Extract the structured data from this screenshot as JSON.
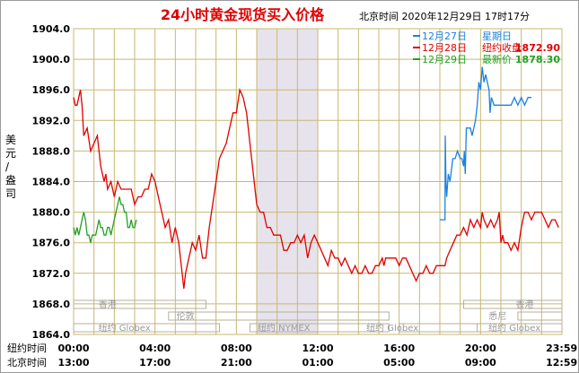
{
  "chart_data": {
    "type": "line",
    "title": "24小时黄金现货买入价格",
    "timestamp": "北京时间   2020年12月29日 17时17分",
    "ylabel": "美元/盎司",
    "ylim": [
      1864.0,
      1904.0
    ],
    "yticks": [
      "1904.0",
      "1900.0",
      "1896.0",
      "1892.0",
      "1888.0",
      "1884.0",
      "1880.0",
      "1876.0",
      "1872.0",
      "1868.0",
      "1864.0"
    ],
    "x_label_ny": "纽约时间",
    "x_label_bj": "北京时间",
    "x_ticks_ny": [
      "00:00",
      "04:00",
      "08:00",
      "12:00",
      "16:00",
      "20:00",
      "23:59"
    ],
    "x_ticks_bj": [
      "13:00",
      "17:00",
      "21:00",
      "01:00",
      "05:00",
      "09:00",
      "12:59"
    ],
    "x_minutes": [
      0,
      240,
      480,
      720,
      960,
      1200,
      1439
    ],
    "legend": [
      {
        "date": "12月27日",
        "label": "星期日",
        "value": "",
        "color": "#1a82e0"
      },
      {
        "date": "12月28日",
        "label": "纽约收盘",
        "value": "1872.90",
        "color": "#e00000"
      },
      {
        "date": "12月29日",
        "label": "最新价",
        "value": "1878.30",
        "color": "#22a022"
      }
    ],
    "sessions": [
      "香港",
      "伦敦",
      "纽约 Globex",
      "纽约 NYMEX",
      "纽约 Globex",
      "香港",
      "悉尼",
      "纽约 Globex"
    ],
    "series": [
      {
        "name": "12月27日",
        "color": "#1a82e0",
        "points": [
          [
            1080,
            1879
          ],
          [
            1095,
            1879
          ],
          [
            1096,
            1890
          ],
          [
            1098,
            1884
          ],
          [
            1100,
            1882
          ],
          [
            1105,
            1885
          ],
          [
            1110,
            1884
          ],
          [
            1118,
            1887
          ],
          [
            1125,
            1887
          ],
          [
            1132,
            1888
          ],
          [
            1140,
            1887
          ],
          [
            1145,
            1887
          ],
          [
            1150,
            1886
          ],
          [
            1152,
            1888
          ],
          [
            1155,
            1885
          ],
          [
            1158,
            1891
          ],
          [
            1162,
            1891
          ],
          [
            1170,
            1891
          ],
          [
            1175,
            1890
          ],
          [
            1180,
            1891
          ],
          [
            1185,
            1892
          ],
          [
            1190,
            1894
          ],
          [
            1195,
            1897
          ],
          [
            1200,
            1896
          ],
          [
            1205,
            1899
          ],
          [
            1210,
            1897
          ],
          [
            1215,
            1898
          ],
          [
            1220,
            1897
          ],
          [
            1225,
            1896
          ],
          [
            1228,
            1893
          ],
          [
            1232,
            1895
          ],
          [
            1240,
            1894
          ],
          [
            1250,
            1894
          ],
          [
            1260,
            1894
          ],
          [
            1270,
            1894
          ],
          [
            1280,
            1894
          ],
          [
            1290,
            1894
          ],
          [
            1300,
            1895
          ],
          [
            1310,
            1894
          ],
          [
            1320,
            1895
          ],
          [
            1330,
            1894
          ],
          [
            1340,
            1895
          ],
          [
            1350,
            1895
          ]
        ]
      },
      {
        "name": "12月28日",
        "color": "#e00000",
        "points": [
          [
            0,
            1895
          ],
          [
            5,
            1894
          ],
          [
            10,
            1894
          ],
          [
            15,
            1895
          ],
          [
            20,
            1896
          ],
          [
            25,
            1894
          ],
          [
            30,
            1890
          ],
          [
            40,
            1891
          ],
          [
            50,
            1888
          ],
          [
            60,
            1889
          ],
          [
            70,
            1890
          ],
          [
            80,
            1886
          ],
          [
            90,
            1884
          ],
          [
            95,
            1885
          ],
          [
            100,
            1883
          ],
          [
            110,
            1884
          ],
          [
            120,
            1882
          ],
          [
            130,
            1884
          ],
          [
            140,
            1883
          ],
          [
            150,
            1883
          ],
          [
            160,
            1883
          ],
          [
            170,
            1883
          ],
          [
            180,
            1881
          ],
          [
            190,
            1882
          ],
          [
            200,
            1882
          ],
          [
            210,
            1883
          ],
          [
            220,
            1883
          ],
          [
            230,
            1885
          ],
          [
            240,
            1884
          ],
          [
            250,
            1882
          ],
          [
            260,
            1880
          ],
          [
            270,
            1878
          ],
          [
            280,
            1879
          ],
          [
            290,
            1876
          ],
          [
            300,
            1878
          ],
          [
            310,
            1876
          ],
          [
            320,
            1872
          ],
          [
            325,
            1870
          ],
          [
            330,
            1872
          ],
          [
            340,
            1874
          ],
          [
            350,
            1876
          ],
          [
            360,
            1875
          ],
          [
            370,
            1877
          ],
          [
            380,
            1874
          ],
          [
            390,
            1874
          ],
          [
            400,
            1878
          ],
          [
            410,
            1881
          ],
          [
            420,
            1884
          ],
          [
            430,
            1887
          ],
          [
            440,
            1888
          ],
          [
            450,
            1889
          ],
          [
            460,
            1891
          ],
          [
            470,
            1893
          ],
          [
            480,
            1893
          ],
          [
            490,
            1896
          ],
          [
            500,
            1895
          ],
          [
            510,
            1893
          ],
          [
            520,
            1889
          ],
          [
            530,
            1885
          ],
          [
            540,
            1881
          ],
          [
            550,
            1880
          ],
          [
            560,
            1880
          ],
          [
            570,
            1878
          ],
          [
            580,
            1878
          ],
          [
            590,
            1877
          ],
          [
            600,
            1877
          ],
          [
            610,
            1877
          ],
          [
            620,
            1875
          ],
          [
            630,
            1875
          ],
          [
            640,
            1876
          ],
          [
            650,
            1876
          ],
          [
            660,
            1877
          ],
          [
            670,
            1876
          ],
          [
            680,
            1877
          ],
          [
            690,
            1874
          ],
          [
            700,
            1876
          ],
          [
            710,
            1877
          ],
          [
            720,
            1876
          ],
          [
            730,
            1875
          ],
          [
            740,
            1874
          ],
          [
            750,
            1873
          ],
          [
            760,
            1875
          ],
          [
            770,
            1874
          ],
          [
            780,
            1874
          ],
          [
            790,
            1873
          ],
          [
            800,
            1874
          ],
          [
            810,
            1873
          ],
          [
            820,
            1872
          ],
          [
            830,
            1873
          ],
          [
            840,
            1872
          ],
          [
            850,
            1872
          ],
          [
            860,
            1873
          ],
          [
            870,
            1872
          ],
          [
            880,
            1872
          ],
          [
            890,
            1873
          ],
          [
            900,
            1873
          ],
          [
            910,
            1874
          ],
          [
            915,
            1873
          ],
          [
            920,
            1874
          ],
          [
            930,
            1874
          ],
          [
            940,
            1874
          ],
          [
            950,
            1874
          ],
          [
            960,
            1873
          ],
          [
            970,
            1874
          ],
          [
            980,
            1874
          ],
          [
            990,
            1873
          ],
          [
            1000,
            1872
          ],
          [
            1010,
            1871
          ],
          [
            1020,
            1872
          ],
          [
            1030,
            1872
          ],
          [
            1040,
            1873
          ],
          [
            1050,
            1872
          ],
          [
            1060,
            1872
          ],
          [
            1070,
            1873
          ],
          [
            1080,
            1873
          ],
          [
            1095,
            1873
          ],
          [
            1100,
            1874
          ],
          [
            1110,
            1875
          ],
          [
            1120,
            1876
          ],
          [
            1130,
            1877
          ],
          [
            1140,
            1877
          ],
          [
            1150,
            1878
          ],
          [
            1160,
            1877
          ],
          [
            1170,
            1879
          ],
          [
            1180,
            1878
          ],
          [
            1190,
            1879
          ],
          [
            1200,
            1878
          ],
          [
            1205,
            1880
          ],
          [
            1210,
            1879
          ],
          [
            1220,
            1878
          ],
          [
            1230,
            1879
          ],
          [
            1240,
            1878
          ],
          [
            1250,
            1879
          ],
          [
            1255,
            1880
          ],
          [
            1260,
            1876
          ],
          [
            1265,
            1877
          ],
          [
            1270,
            1876
          ],
          [
            1280,
            1876
          ],
          [
            1290,
            1875
          ],
          [
            1300,
            1876
          ],
          [
            1310,
            1875
          ],
          [
            1320,
            1878
          ],
          [
            1330,
            1880
          ],
          [
            1340,
            1880
          ],
          [
            1350,
            1879
          ],
          [
            1360,
            1880
          ],
          [
            1370,
            1880
          ],
          [
            1380,
            1880
          ],
          [
            1390,
            1879
          ],
          [
            1400,
            1878
          ],
          [
            1410,
            1879
          ],
          [
            1420,
            1879
          ],
          [
            1430,
            1878
          ]
        ]
      },
      {
        "name": "12月29日",
        "color": "#22a022",
        "points": [
          [
            0,
            1878
          ],
          [
            5,
            1877
          ],
          [
            10,
            1878
          ],
          [
            15,
            1877
          ],
          [
            20,
            1878
          ],
          [
            25,
            1879
          ],
          [
            30,
            1880
          ],
          [
            35,
            1879
          ],
          [
            40,
            1877
          ],
          [
            45,
            1877
          ],
          [
            50,
            1876
          ],
          [
            55,
            1877
          ],
          [
            60,
            1877
          ],
          [
            65,
            1877
          ],
          [
            70,
            1878
          ],
          [
            75,
            1879
          ],
          [
            80,
            1878
          ],
          [
            85,
            1878
          ],
          [
            90,
            1877
          ],
          [
            95,
            1877
          ],
          [
            100,
            1878
          ],
          [
            105,
            1878
          ],
          [
            110,
            1877
          ],
          [
            115,
            1878
          ],
          [
            120,
            1879
          ],
          [
            125,
            1880
          ],
          [
            130,
            1881
          ],
          [
            135,
            1882
          ],
          [
            140,
            1881
          ],
          [
            145,
            1881
          ],
          [
            150,
            1880
          ],
          [
            155,
            1880
          ],
          [
            160,
            1878
          ],
          [
            165,
            1878
          ],
          [
            170,
            1879
          ],
          [
            175,
            1878
          ],
          [
            180,
            1878
          ],
          [
            185,
            1879
          ]
        ]
      }
    ],
    "grid": true,
    "highlight_band": [
      540,
      720
    ]
  }
}
